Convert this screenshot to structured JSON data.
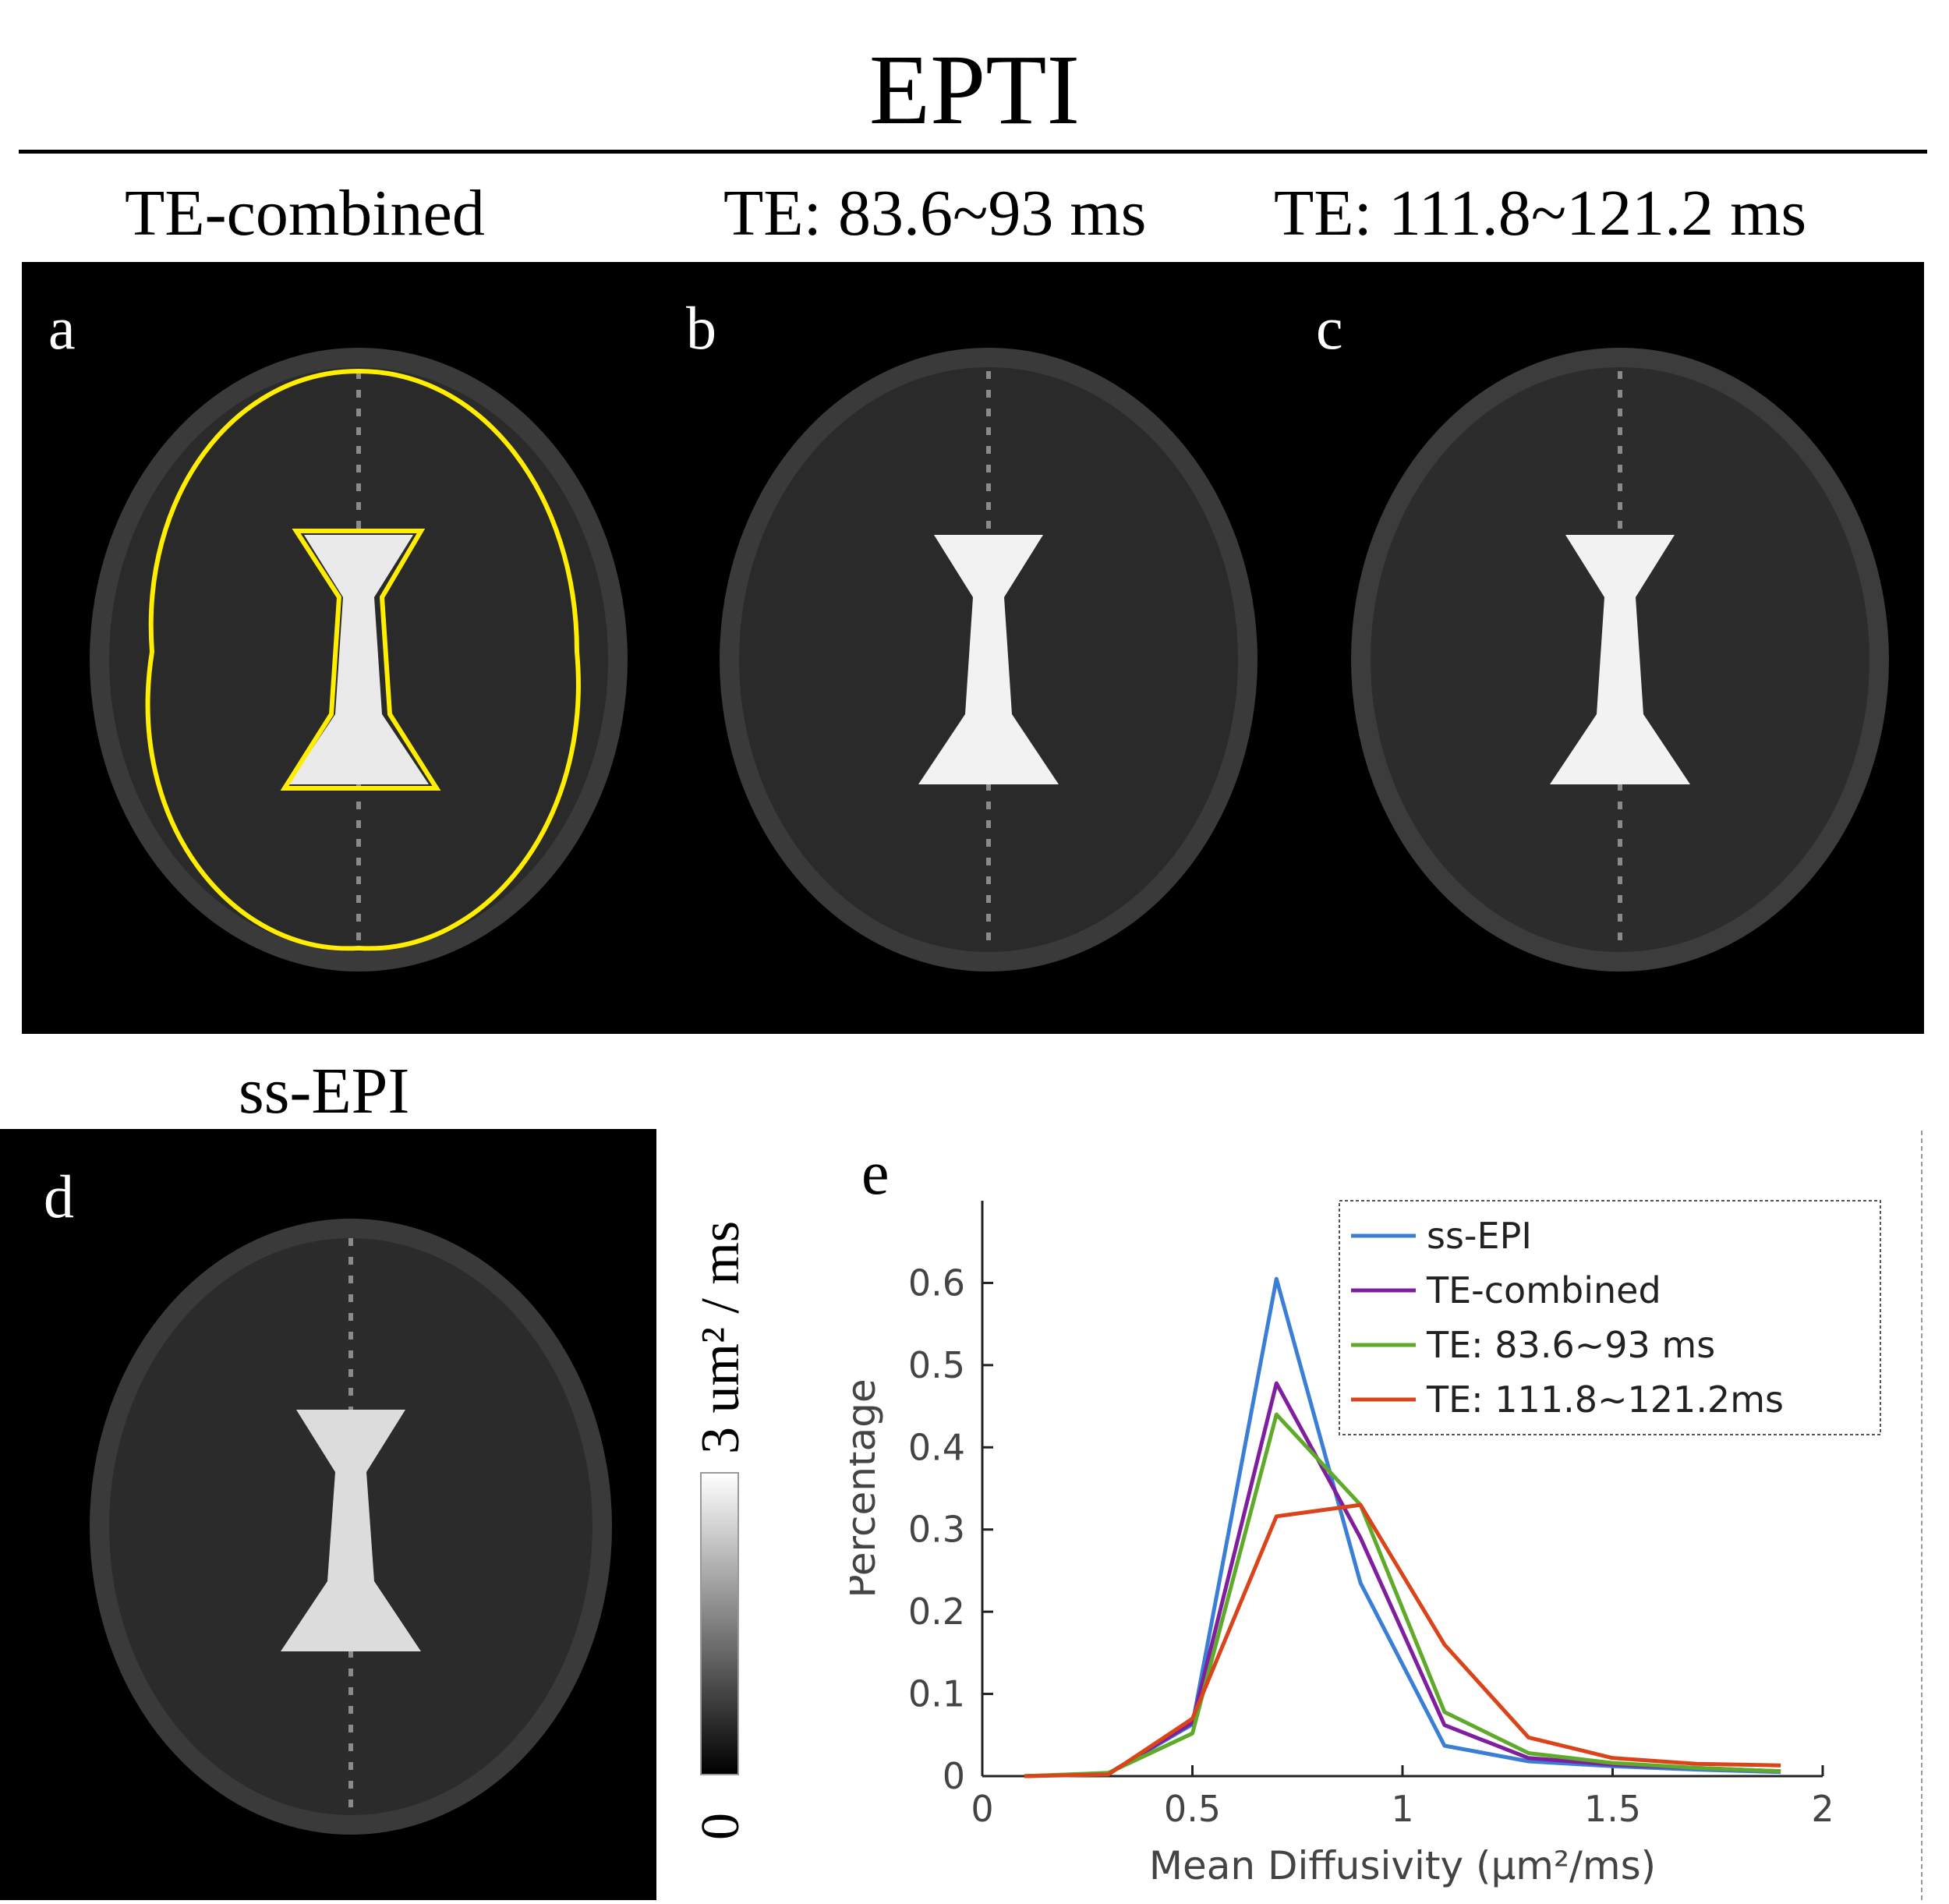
{
  "figure": {
    "title": "EPTI",
    "col_headers": [
      "TE-combined",
      "TE: 83.6~93 ms",
      "TE: 111.8~121.2 ms"
    ],
    "ssepi_header": "ss-EPI",
    "panel_labels": [
      "a",
      "b",
      "c",
      "d",
      "e"
    ],
    "colorbar": {
      "max_label": "3 um² / ms",
      "min_label": "0"
    },
    "roi_color": "#ffee00"
  },
  "chart_data": {
    "type": "line",
    "xlabel": "Mean Diffusivity (μm²/ms)",
    "ylabel": "Percentage",
    "xlim": [
      0,
      2
    ],
    "ylim": [
      0,
      0.7
    ],
    "xticks": [
      0,
      0.5,
      1,
      1.5,
      2
    ],
    "xtick_labels": [
      "0",
      "0.5",
      "1",
      "1.5",
      "2"
    ],
    "yticks": [
      0,
      0.1,
      0.2,
      0.3,
      0.4,
      0.5,
      0.6
    ],
    "ytick_labels": [
      "0",
      "0.1",
      "0.2",
      "0.3",
      "0.4",
      "0.5",
      "0.6"
    ],
    "legend_position": "top-right",
    "x": [
      0.1,
      0.3,
      0.5,
      0.7,
      0.9,
      1.1,
      1.3,
      1.5,
      1.7,
      1.9
    ],
    "series": [
      {
        "name": "ss-EPI",
        "color": "#3a7fd5",
        "values": [
          0.0,
          0.003,
          0.063,
          0.605,
          0.235,
          0.037,
          0.018,
          0.012,
          0.008,
          0.005
        ]
      },
      {
        "name": "TE-combined",
        "color": "#7f1f9e",
        "values": [
          0.0,
          0.003,
          0.065,
          0.478,
          0.29,
          0.062,
          0.022,
          0.014,
          0.01,
          0.006
        ]
      },
      {
        "name": "TE: 83.6~93 ms",
        "color": "#5faa2a",
        "values": [
          0.0,
          0.004,
          0.052,
          0.44,
          0.33,
          0.078,
          0.028,
          0.016,
          0.01,
          0.006
        ]
      },
      {
        "name": "TE: 111.8~121.2ms",
        "color": "#d9441a",
        "values": [
          0.0,
          0.002,
          0.07,
          0.316,
          0.33,
          0.16,
          0.047,
          0.022,
          0.015,
          0.013
        ]
      }
    ]
  }
}
